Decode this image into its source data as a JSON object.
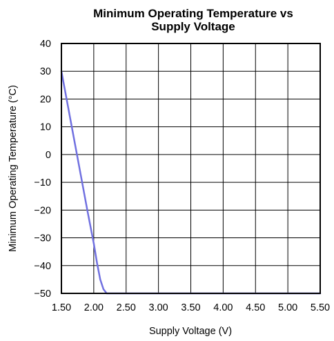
{
  "chart_data": {
    "type": "line",
    "title": [
      "Minimum Operating Temperature vs",
      "Supply Voltage"
    ],
    "xlabel": "Supply Voltage (V)",
    "ylabel": "Minimum Operating Temperature (°C)",
    "xlim": [
      1.5,
      5.5
    ],
    "ylim": [
      -50,
      40
    ],
    "x_ticks": [
      1.5,
      2.0,
      2.5,
      3.0,
      3.5,
      4.0,
      4.5,
      5.0,
      5.5
    ],
    "x_tick_labels": [
      "1.50",
      "2.00",
      "2.50",
      "3.00",
      "3.50",
      "4.00",
      "4.50",
      "5.00",
      "5.50"
    ],
    "y_ticks": [
      40,
      30,
      20,
      10,
      0,
      -10,
      -20,
      -30,
      -40,
      -50
    ],
    "y_tick_labels": [
      "40",
      "30",
      "20",
      "10",
      "0",
      "−10",
      "−20",
      "−30",
      "−40",
      "−50"
    ],
    "grid": true,
    "series": [
      {
        "color": "#7070e0",
        "x": [
          1.5,
          1.6,
          1.7,
          1.8,
          1.9,
          2.0,
          2.05,
          2.1,
          2.15,
          2.2,
          2.25,
          2.3,
          2.5,
          3.0,
          3.5,
          4.0,
          4.5,
          5.0,
          5.5
        ],
        "y": [
          30,
          17.5,
          5,
          -7.5,
          -20,
          -32,
          -39,
          -45,
          -48.5,
          -50,
          -50,
          -50,
          -50,
          -50,
          -50,
          -50,
          -50,
          -50,
          -50
        ]
      }
    ]
  }
}
